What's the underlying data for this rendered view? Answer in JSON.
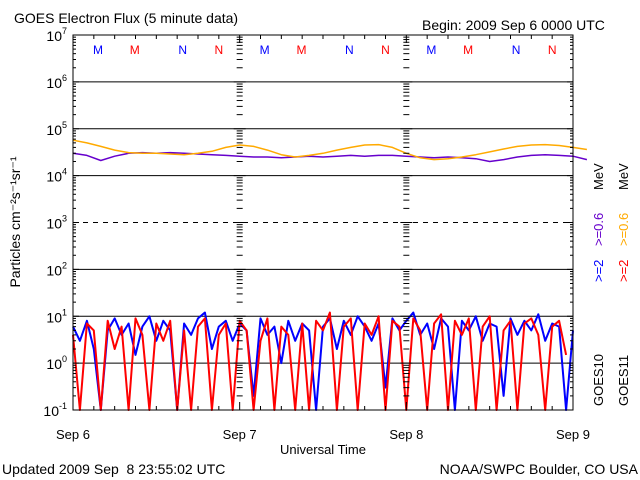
{
  "chart_data": {
    "type": "line",
    "title": "GOES Electron Flux (5 minute data)",
    "begin_label": "Begin: 2009 Sep 6 0000 UTC",
    "xlabel": "Universal Time",
    "ylabel": "Particles cm⁻²s⁻¹sr⁻¹",
    "y_scale": "log",
    "ylim": [
      0.1,
      10000000
    ],
    "xlim_hours": [
      0,
      72
    ],
    "ytick_base": "10",
    "ytick_exponents": [
      "7",
      "6",
      "5",
      "4",
      "3",
      "2",
      "1",
      "0",
      "-1"
    ],
    "xtick_labels": [
      "Sep 6",
      "Sep 7",
      "Sep 8",
      "Sep 9"
    ],
    "dashed_gridline_exponent": 3,
    "footer_left": "Updated 2009 Sep  8 23:55:02 UTC",
    "footer_right": "NOAA/SWPC Boulder, CO USA",
    "legend": {
      "col1": {
        "label_2": ">=2",
        "label_06": ">=0.6",
        "unit": "MeV",
        "sat": "GOES10"
      },
      "col2": {
        "label_2": ">=2",
        "label_06": ">=0.6",
        "unit": "MeV",
        "sat": "GOES11"
      }
    },
    "markers": [
      {
        "text": "M",
        "color": "#0000ff",
        "hour": 3.6
      },
      {
        "text": "M",
        "color": "#ff0000",
        "hour": 8.9
      },
      {
        "text": "N",
        "color": "#0000ff",
        "hour": 15.8
      },
      {
        "text": "N",
        "color": "#ff0000",
        "hour": 21.0
      }
    ],
    "series": [
      {
        "name": "GOES10 >=0.6 MeV",
        "color": "#6600cc",
        "x_step_hours": 2,
        "values": [
          30000,
          27000,
          21000,
          26000,
          30000,
          31000,
          30000,
          31000,
          30000,
          29000,
          28000,
          27000,
          26000,
          25000,
          25000,
          24000,
          25000,
          26000,
          25000,
          26000,
          27000,
          26000,
          27000,
          27000,
          26000,
          25000,
          24000,
          25000,
          24000,
          23000,
          20000,
          22000,
          25000,
          27000,
          28000,
          27000,
          26000,
          22000
        ]
      },
      {
        "name": "GOES11 >=0.6 MeV",
        "color": "#ffaa00",
        "x_step_hours": 2,
        "values": [
          57000,
          50000,
          42000,
          35000,
          31000,
          30000,
          30000,
          29000,
          28000,
          30000,
          33000,
          40000,
          45000,
          42000,
          35000,
          28000,
          25000,
          27000,
          30000,
          35000,
          40000,
          45000,
          46000,
          40000,
          30000,
          24000,
          22000,
          23000,
          25000,
          28000,
          32000,
          37000,
          42000,
          45000,
          46000,
          44000,
          40000,
          36000
        ]
      },
      {
        "name": "GOES10 >=2 MeV",
        "color": "#0000ff",
        "x_step_hours": 1,
        "values": [
          6,
          3,
          8,
          2,
          0.1,
          5,
          9,
          4,
          7,
          1.5,
          6,
          10,
          3,
          8,
          5,
          0.1,
          7,
          4,
          9,
          12,
          2,
          6,
          8,
          3,
          7,
          5,
          0.2,
          9,
          4,
          6,
          1,
          8,
          3,
          7,
          5,
          0.1,
          6,
          9,
          2,
          8,
          4,
          10,
          6,
          3,
          7,
          0.3,
          9,
          5,
          8,
          12,
          4,
          7,
          2,
          9,
          6,
          0.1,
          8,
          5,
          10,
          3,
          7,
          6,
          0.2,
          9,
          4,
          8,
          5,
          11,
          3,
          7,
          6,
          0.1,
          5
        ]
      },
      {
        "name": "GOES11 >=2 MeV",
        "color": "#ff0000",
        "x_step_hours": 1,
        "values": [
          4,
          0.1,
          7,
          5,
          0.1,
          8,
          2,
          6,
          0.1,
          9,
          4,
          0.1,
          7,
          3,
          8,
          0.1,
          5,
          0.1,
          6,
          9,
          0.1,
          4,
          7,
          0.1,
          8,
          5,
          0.1,
          3,
          9,
          0.1,
          6,
          4,
          0.1,
          7,
          0.1,
          8,
          5,
          12,
          0.1,
          6,
          9,
          0.1,
          7,
          4,
          10,
          0.1,
          8,
          6,
          0.1,
          9,
          5,
          0.1,
          7,
          11,
          0.1,
          8,
          4,
          9,
          0.1,
          6,
          10,
          0.1,
          5,
          8,
          0.1,
          7,
          9,
          4,
          0.1,
          6,
          8,
          1.5
        ]
      }
    ]
  }
}
